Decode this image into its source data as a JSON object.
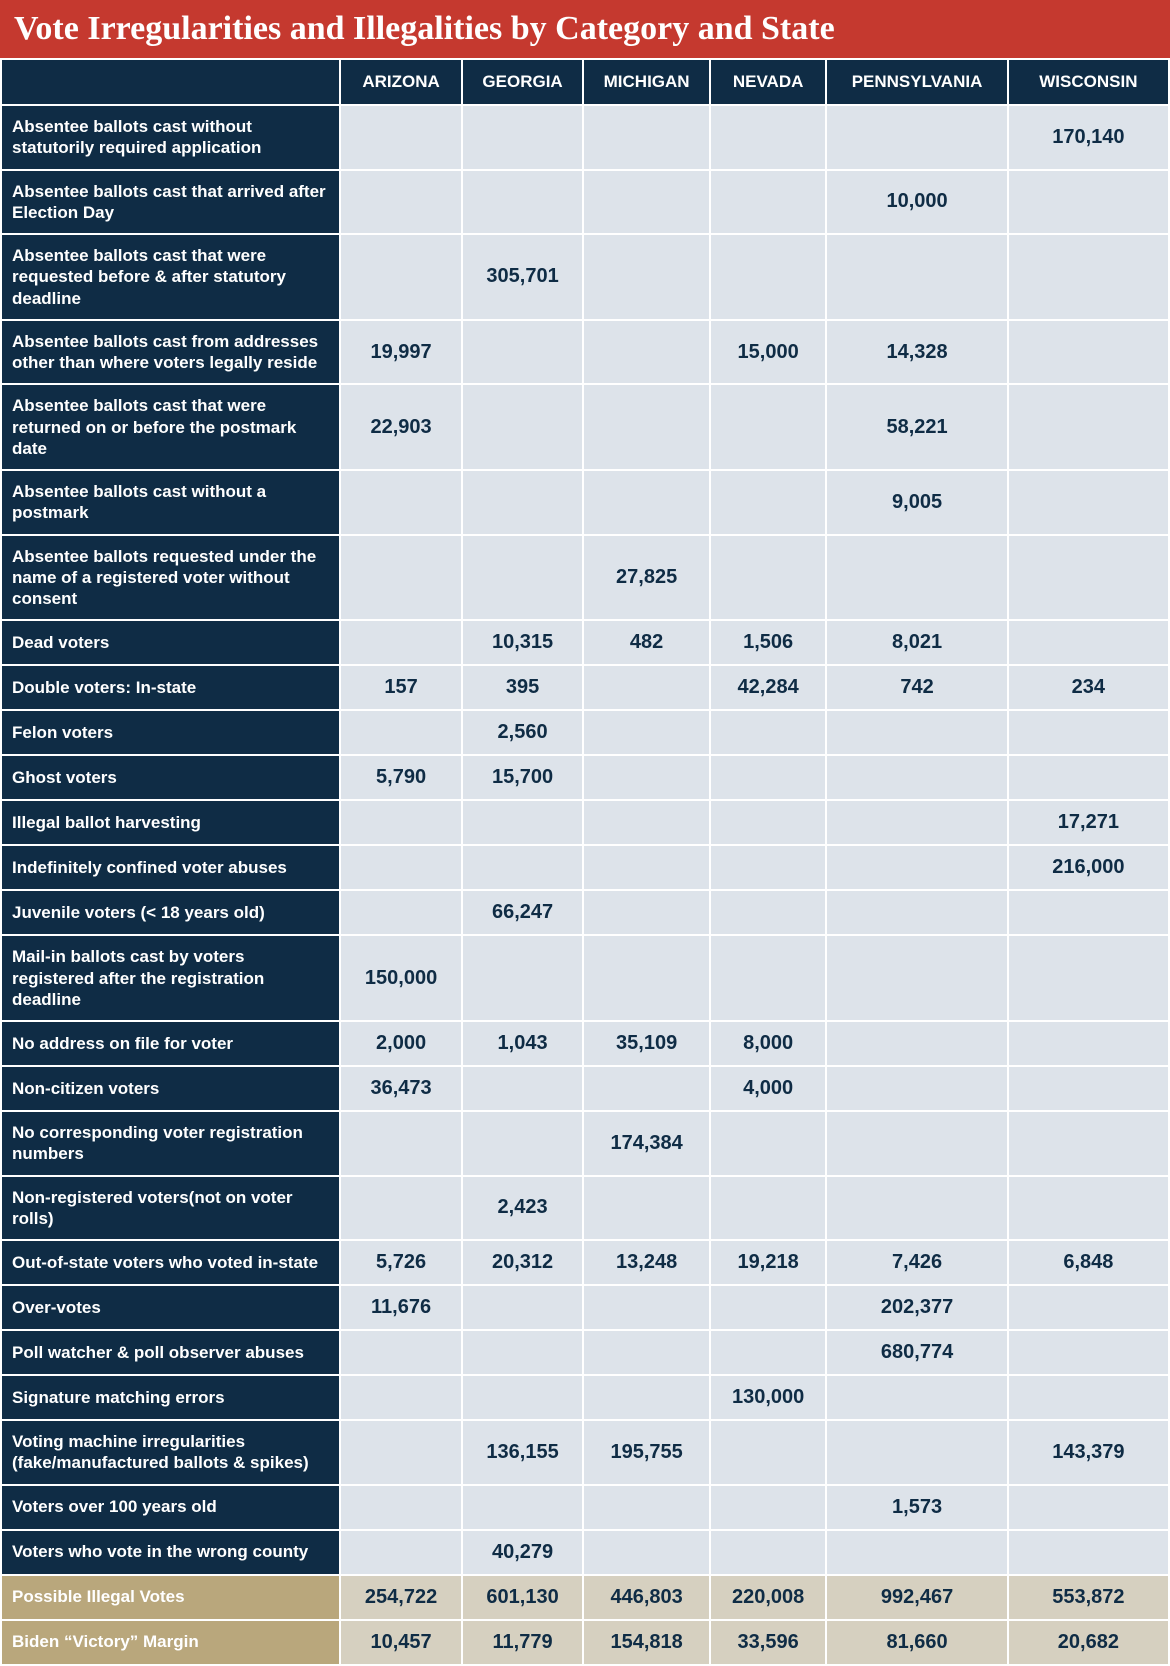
{
  "title": "Vote Irregularities and Illegalities by Category and State",
  "colors": {
    "title_bg": "#c5392f",
    "header_bg": "#0f2c45",
    "cell_bg": "#dde3ea",
    "summary_label_bg": "#b9a77c",
    "summary_cell_bg": "#d6d0c0",
    "text_dark": "#0f2c45",
    "text_light": "#ffffff"
  },
  "states": [
    "ARIZONA",
    "GEORGIA",
    "MICHIGAN",
    "NEVADA",
    "PENNSYLVANIA",
    "WISCONSIN"
  ],
  "rows": [
    {
      "label": "Absentee ballots cast without statutorily required application",
      "values": [
        "",
        "",
        "",
        "",
        "",
        "170,140"
      ]
    },
    {
      "label": "Absentee ballots cast that arrived after Election Day",
      "values": [
        "",
        "",
        "",
        "",
        "10,000",
        ""
      ]
    },
    {
      "label": "Absentee ballots cast that were requested before & after statutory deadline",
      "values": [
        "",
        "305,701",
        "",
        "",
        "",
        ""
      ]
    },
    {
      "label": "Absentee ballots cast from addresses other than where voters legally reside",
      "values": [
        "19,997",
        "",
        "",
        "15,000",
        "14,328",
        ""
      ]
    },
    {
      "label": "Absentee ballots cast that were returned on or before the postmark date",
      "values": [
        "22,903",
        "",
        "",
        "",
        "58,221",
        ""
      ]
    },
    {
      "label": "Absentee ballots cast without a postmark",
      "values": [
        "",
        "",
        "",
        "",
        "9,005",
        ""
      ]
    },
    {
      "label": "Absentee ballots requested under the name of a registered voter without consent",
      "values": [
        "",
        "",
        "27,825",
        "",
        "",
        ""
      ]
    },
    {
      "label": "Dead voters",
      "values": [
        "",
        "10,315",
        "482",
        "1,506",
        "8,021",
        ""
      ]
    },
    {
      "label": "Double voters: In-state",
      "values": [
        "157",
        "395",
        "",
        "42,284",
        "742",
        "234"
      ]
    },
    {
      "label": "Felon voters",
      "values": [
        "",
        "2,560",
        "",
        "",
        "",
        ""
      ]
    },
    {
      "label": "Ghost voters",
      "values": [
        "5,790",
        "15,700",
        "",
        "",
        "",
        ""
      ]
    },
    {
      "label": "Illegal ballot harvesting",
      "values": [
        "",
        "",
        "",
        "",
        "",
        "17,271"
      ]
    },
    {
      "label": "Indefinitely confined voter abuses",
      "values": [
        "",
        "",
        "",
        "",
        "",
        "216,000"
      ]
    },
    {
      "label": "Juvenile voters (< 18 years old)",
      "values": [
        "",
        "66,247",
        "",
        "",
        "",
        ""
      ]
    },
    {
      "label": "Mail-in ballots cast by voters registered after the registration deadline",
      "values": [
        "150,000",
        "",
        "",
        "",
        "",
        ""
      ]
    },
    {
      "label": "No address on file for voter",
      "values": [
        "2,000",
        "1,043",
        "35,109",
        "8,000",
        "",
        ""
      ]
    },
    {
      "label": "Non-citizen voters",
      "values": [
        "36,473",
        "",
        "",
        "4,000",
        "",
        ""
      ]
    },
    {
      "label": "No corresponding voter registration numbers",
      "values": [
        "",
        "",
        "174,384",
        "",
        "",
        ""
      ]
    },
    {
      "label": "Non-registered voters(not on voter rolls)",
      "values": [
        "",
        "2,423",
        "",
        "",
        "",
        ""
      ]
    },
    {
      "label": "Out-of-state voters who voted in-state",
      "values": [
        "5,726",
        "20,312",
        "13,248",
        "19,218",
        "7,426",
        "6,848"
      ]
    },
    {
      "label": "Over-votes",
      "values": [
        "11,676",
        "",
        "",
        "",
        "202,377",
        ""
      ]
    },
    {
      "label": "Poll watcher & poll observer abuses",
      "values": [
        "",
        "",
        "",
        "",
        "680,774",
        ""
      ]
    },
    {
      "label": "Signature matching errors",
      "values": [
        "",
        "",
        "",
        "130,000",
        "",
        ""
      ]
    },
    {
      "label": "Voting machine irregularities (fake/manufactured ballots & spikes)",
      "values": [
        "",
        "136,155",
        "195,755",
        "",
        "",
        "143,379"
      ]
    },
    {
      "label": "Voters over 100 years old",
      "values": [
        "",
        "",
        "",
        "",
        "1,573",
        ""
      ]
    },
    {
      "label": "Voters who vote in the wrong county",
      "values": [
        "",
        "40,279",
        "",
        "",
        "",
        ""
      ]
    }
  ],
  "summary": [
    {
      "label": "Possible Illegal Votes",
      "values": [
        "254,722",
        "601,130",
        "446,803",
        "220,008",
        "992,467",
        "553,872"
      ]
    },
    {
      "label": "Biden “Victory” Margin",
      "values": [
        "10,457",
        "11,779",
        "154,818",
        "33,596",
        "81,660",
        "20,682"
      ]
    }
  ]
}
